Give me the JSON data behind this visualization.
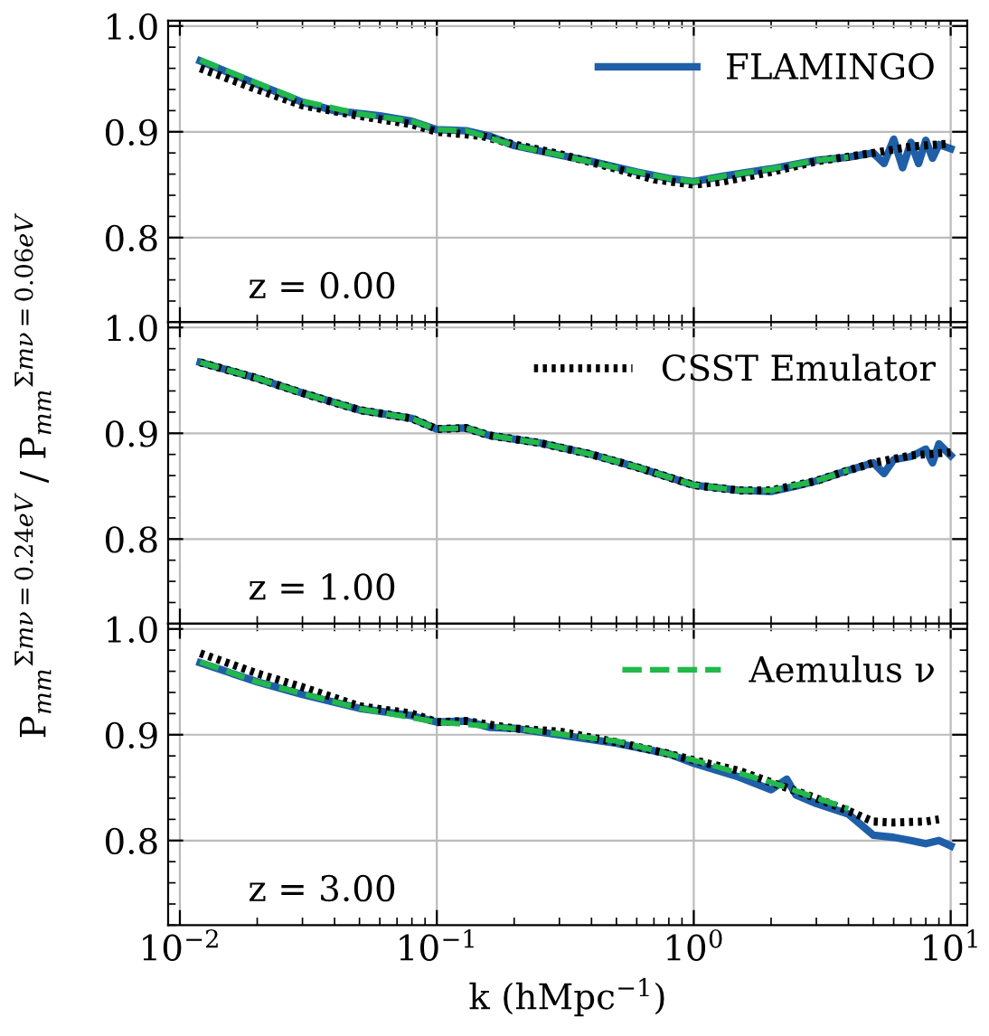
{
  "chart_data": [
    {
      "type": "line",
      "ylabel": "P$_{mm}$$^{Σmν=0.24eV}$ / P$_{mm}$$^{Σmν=0.06eV}$",
      "log": "x",
      "xlim": [
        0.009,
        11.6
      ],
      "ylim": [
        0.72,
        1.005
      ],
      "xticks": [
        {
          "value": 0.01,
          "label": null
        },
        {
          "value": 0.1,
          "label": null
        },
        {
          "value": 1,
          "label": null
        },
        {
          "value": 10,
          "label": null
        }
      ],
      "yticks": [
        {
          "value": 0.8,
          "label": "0.8"
        },
        {
          "value": 0.9,
          "label": "0.9"
        },
        {
          "value": 1.0,
          "label": "1.0"
        }
      ],
      "tick_labels": "y",
      "grid": true,
      "legend": "top right",
      "annotations": [
        {
          "text": "z = 0.00"
        }
      ],
      "series": [
        {
          "name": "FLAMINGO",
          "color": "#1f5fa8",
          "line_style": "solid",
          "x": [
            0.012,
            0.02,
            0.03,
            0.04,
            0.06,
            0.08,
            0.1,
            0.13,
            0.16,
            0.2,
            0.3,
            0.4,
            0.6,
            0.8,
            1.0,
            1.3,
            2,
            3,
            4,
            5,
            5.5,
            6,
            6.5,
            7,
            7.5,
            8,
            8.5,
            9,
            10
          ],
          "values": [
            0.967,
            0.945,
            0.928,
            0.92,
            0.915,
            0.91,
            0.902,
            0.901,
            0.896,
            0.887,
            0.878,
            0.872,
            0.862,
            0.856,
            0.853,
            0.858,
            0.865,
            0.873,
            0.876,
            0.88,
            0.87,
            0.893,
            0.866,
            0.89,
            0.87,
            0.892,
            0.875,
            0.888,
            0.884
          ]
        },
        {
          "color": "#000000",
          "line_style": "dotted",
          "x": [
            0.012,
            0.02,
            0.03,
            0.05,
            0.08,
            0.1,
            0.15,
            0.2,
            0.3,
            0.5,
            0.7,
            1.0,
            1.3,
            2,
            3,
            5,
            7,
            10
          ],
          "values": [
            0.96,
            0.94,
            0.925,
            0.915,
            0.907,
            0.9,
            0.896,
            0.888,
            0.879,
            0.865,
            0.855,
            0.85,
            0.853,
            0.862,
            0.872,
            0.88,
            0.886,
            0.889
          ]
        },
        {
          "color": "#22b84a",
          "line_style": "dashed",
          "x": [
            0.012,
            0.02,
            0.03,
            0.05,
            0.08,
            0.1,
            0.13,
            0.2,
            0.3,
            0.5,
            0.8,
            1.0,
            1.3,
            2,
            3,
            4
          ],
          "values": [
            0.968,
            0.946,
            0.929,
            0.917,
            0.91,
            0.902,
            0.901,
            0.887,
            0.878,
            0.866,
            0.856,
            0.853,
            0.858,
            0.865,
            0.873,
            0.876
          ]
        }
      ]
    },
    {
      "type": "line",
      "log": "x",
      "xlim": [
        0.009,
        11.6
      ],
      "ylim": [
        0.72,
        1.005
      ],
      "xticks": [
        {
          "value": 0.01,
          "label": null
        },
        {
          "value": 0.1,
          "label": null
        },
        {
          "value": 1,
          "label": null
        },
        {
          "value": 10,
          "label": null
        }
      ],
      "yticks": [
        {
          "value": 0.8,
          "label": "0.8"
        },
        {
          "value": 0.9,
          "label": "0.9"
        },
        {
          "value": 1.0,
          "label": "1.0"
        }
      ],
      "tick_labels": "y",
      "grid": true,
      "legend": "top right",
      "annotations": [
        {
          "text": "z = 1.00"
        }
      ],
      "series": [
        {
          "color": "#1f5fa8",
          "line_style": "solid",
          "x": [
            0.012,
            0.02,
            0.03,
            0.05,
            0.08,
            0.1,
            0.13,
            0.16,
            0.25,
            0.4,
            0.6,
            1.0,
            1.5,
            2,
            2.5,
            3,
            4,
            5,
            5.5,
            6,
            7,
            8,
            8.5,
            9,
            10
          ],
          "values": [
            0.967,
            0.952,
            0.938,
            0.922,
            0.914,
            0.904,
            0.905,
            0.898,
            0.891,
            0.88,
            0.868,
            0.851,
            0.846,
            0.845,
            0.85,
            0.855,
            0.865,
            0.872,
            0.862,
            0.875,
            0.878,
            0.885,
            0.872,
            0.89,
            0.879
          ]
        },
        {
          "name": "CSST Emulator",
          "color": "#000000",
          "line_style": "dotted",
          "x": [
            0.012,
            0.02,
            0.03,
            0.05,
            0.08,
            0.1,
            0.13,
            0.16,
            0.25,
            0.4,
            0.6,
            1.0,
            1.5,
            2,
            3,
            4,
            5,
            7,
            10
          ],
          "values": [
            0.967,
            0.952,
            0.938,
            0.922,
            0.914,
            0.904,
            0.905,
            0.898,
            0.891,
            0.88,
            0.868,
            0.851,
            0.846,
            0.846,
            0.855,
            0.865,
            0.872,
            0.879,
            0.882
          ]
        },
        {
          "color": "#22b84a",
          "line_style": "dashed",
          "x": [
            0.012,
            0.02,
            0.03,
            0.05,
            0.08,
            0.1,
            0.13,
            0.16,
            0.25,
            0.4,
            0.6,
            1.0,
            1.5,
            2,
            3,
            4
          ],
          "values": [
            0.967,
            0.952,
            0.938,
            0.922,
            0.914,
            0.904,
            0.905,
            0.898,
            0.891,
            0.88,
            0.868,
            0.851,
            0.846,
            0.846,
            0.855,
            0.865
          ]
        }
      ]
    },
    {
      "type": "line",
      "xlabel": "k (hMpc$^{−1}$)",
      "log": "x",
      "xlim": [
        0.009,
        11.6
      ],
      "ylim": [
        0.72,
        1.005
      ],
      "xticks": [
        {
          "value": 0.01,
          "label": "10$^{−2}$"
        },
        {
          "value": 0.1,
          "label": "10$^{−1}$"
        },
        {
          "value": 1,
          "label": "10$^{0}$"
        },
        {
          "value": 10,
          "label": "10$^{1}$"
        }
      ],
      "yticks": [
        {
          "value": 0.8,
          "label": "0.8"
        },
        {
          "value": 0.9,
          "label": "0.9"
        },
        {
          "value": 1.0,
          "label": "1.0"
        }
      ],
      "grid": true,
      "legend": "top right",
      "annotations": [
        {
          "text": "z = 3.00"
        }
      ],
      "series": [
        {
          "color": "#1f5fa8",
          "line_style": "solid",
          "x": [
            0.012,
            0.02,
            0.03,
            0.05,
            0.08,
            0.1,
            0.13,
            0.16,
            0.2,
            0.3,
            0.5,
            0.8,
            1.0,
            1.5,
            2,
            2.3,
            2.5,
            3,
            4,
            5,
            6,
            7,
            8,
            9,
            10
          ],
          "values": [
            0.968,
            0.95,
            0.938,
            0.925,
            0.918,
            0.912,
            0.913,
            0.907,
            0.906,
            0.9,
            0.892,
            0.882,
            0.873,
            0.86,
            0.848,
            0.858,
            0.843,
            0.835,
            0.825,
            0.805,
            0.803,
            0.8,
            0.797,
            0.8,
            0.795
          ]
        },
        {
          "color": "#000000",
          "line_style": "dotted",
          "x": [
            0.012,
            0.02,
            0.03,
            0.05,
            0.08,
            0.1,
            0.13,
            0.2,
            0.3,
            0.5,
            0.8,
            1.0,
            1.5,
            2,
            3,
            4,
            5,
            6,
            8,
            9
          ],
          "values": [
            0.977,
            0.958,
            0.945,
            0.927,
            0.92,
            0.912,
            0.913,
            0.906,
            0.903,
            0.893,
            0.882,
            0.876,
            0.866,
            0.855,
            0.84,
            0.828,
            0.818,
            0.817,
            0.818,
            0.82
          ]
        },
        {
          "name": "Aemulus ν",
          "color": "#22b84a",
          "line_style": "dashed",
          "x": [
            0.012,
            0.02,
            0.05,
            0.1,
            0.2,
            0.5,
            1.0,
            2,
            4
          ],
          "values": [
            0.969,
            0.95,
            0.925,
            0.912,
            0.906,
            0.894,
            0.876,
            0.855,
            0.83
          ]
        }
      ]
    }
  ]
}
